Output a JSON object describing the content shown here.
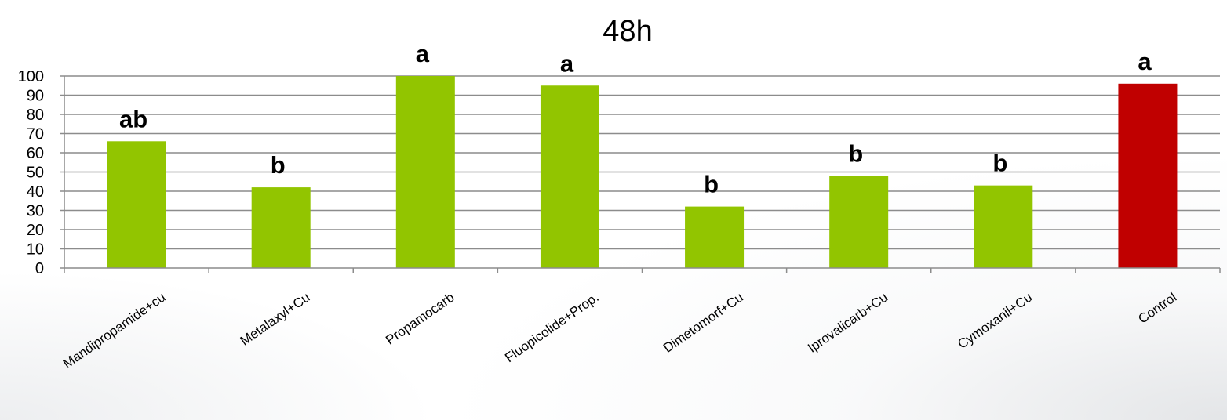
{
  "chart_data": {
    "type": "bar",
    "title": "48h",
    "xlabel": "",
    "ylabel": "",
    "ylim": [
      0,
      100
    ],
    "yticks": [
      0,
      10,
      20,
      30,
      40,
      50,
      60,
      70,
      80,
      90,
      100
    ],
    "grid": true,
    "legend": "none",
    "categories": [
      "Mandipropamide+cu",
      "Metalaxyl+Cu",
      "Propamocarb",
      "Fluopicolide+Prop.",
      "Dimetomorf+Cu",
      "Iprovalicarb+Cu",
      "Cymoxanil+Cu",
      "Control"
    ],
    "values": [
      66,
      42,
      100,
      95,
      32,
      48,
      43,
      96
    ],
    "significance_letters": [
      "ab",
      "b",
      "a",
      "a",
      "b",
      "b",
      "b",
      "a"
    ],
    "bar_colors": [
      "#92c500",
      "#92c500",
      "#92c500",
      "#92c500",
      "#92c500",
      "#92c500",
      "#92c500",
      "#c00000"
    ]
  }
}
